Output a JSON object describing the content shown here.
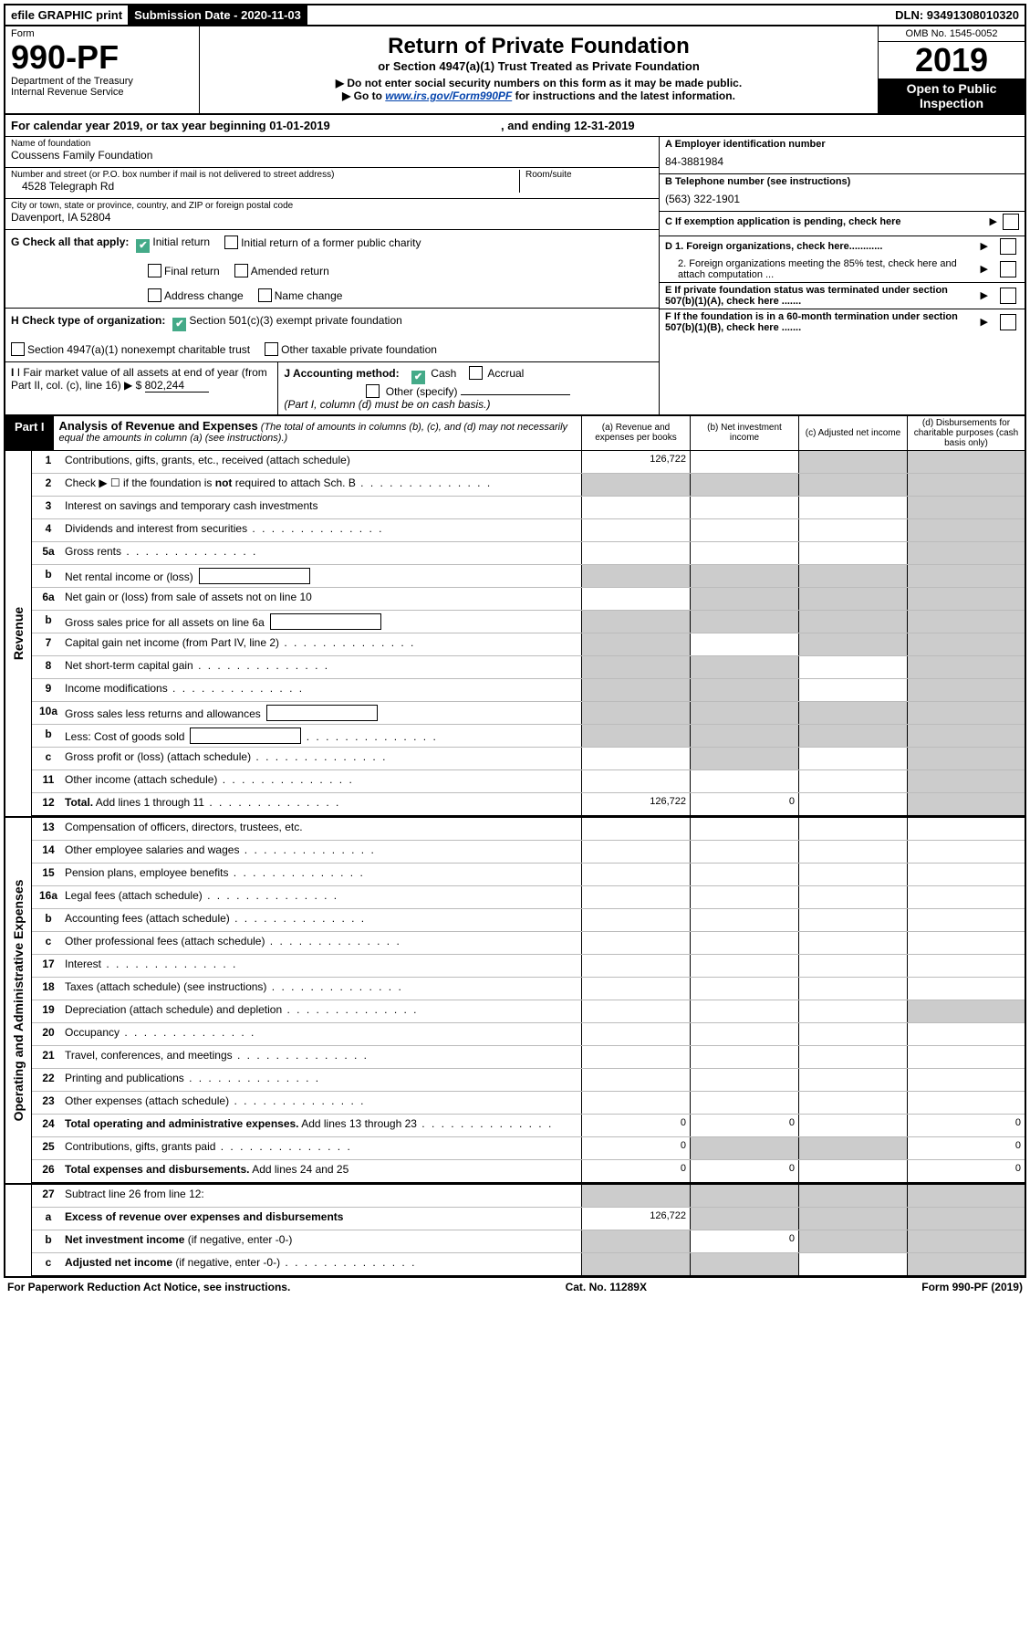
{
  "colors": {
    "black": "#000000",
    "white": "#ffffff",
    "grey_fill": "#cccccc",
    "link_blue": "#0645ad",
    "check_green": "#44aa88"
  },
  "topbar": {
    "efile": "efile GRAPHIC print",
    "submission_label": "Submission Date - 2020-11-03",
    "dln": "DLN: 93491308010320"
  },
  "header": {
    "form_label": "Form",
    "form_number": "990-PF",
    "dept1": "Department of the Treasury",
    "dept2": "Internal Revenue Service",
    "title": "Return of Private Foundation",
    "subtitle": "or Section 4947(a)(1) Trust Treated as Private Foundation",
    "bullet1": "▶ Do not enter social security numbers on this form as it may be made public.",
    "bullet2_pre": "▶ Go to ",
    "bullet2_link": "www.irs.gov/Form990PF",
    "bullet2_post": " for instructions and the latest information.",
    "omb": "OMB No. 1545-0052",
    "year": "2019",
    "open": "Open to Public Inspection"
  },
  "calyear": {
    "text_pre": "For calendar year 2019, or tax year beginning ",
    "begin": "01-01-2019",
    "mid": " , and ending ",
    "end": "12-31-2019"
  },
  "ident": {
    "name_label": "Name of foundation",
    "name": "Coussens Family Foundation",
    "addr_label": "Number and street (or P.O. box number if mail is not delivered to street address)",
    "addr": "4528 Telegraph Rd",
    "room_label": "Room/suite",
    "room": "",
    "city_label": "City or town, state or province, country, and ZIP or foreign postal code",
    "city": "Davenport, IA  52804",
    "a_label": "A Employer identification number",
    "a_val": "84-3881984",
    "b_label": "B Telephone number (see instructions)",
    "b_val": "(563) 322-1901",
    "c_label": "C If exemption application is pending, check here"
  },
  "g_section": {
    "label": "G Check all that apply:",
    "items": [
      {
        "label": "Initial return",
        "checked": true
      },
      {
        "label": "Initial return of a former public charity",
        "checked": false
      },
      {
        "label": "Final return",
        "checked": false
      },
      {
        "label": "Amended return",
        "checked": false
      },
      {
        "label": "Address change",
        "checked": false
      },
      {
        "label": "Name change",
        "checked": false
      }
    ]
  },
  "h_section": {
    "label": "H Check type of organization:",
    "items": [
      {
        "label": "Section 501(c)(3) exempt private foundation",
        "checked": true
      },
      {
        "label": "Section 4947(a)(1) nonexempt charitable trust",
        "checked": false
      },
      {
        "label": "Other taxable private foundation",
        "checked": false
      }
    ]
  },
  "d_section": {
    "d1": "D 1. Foreign organizations, check here............",
    "d2": "2. Foreign organizations meeting the 85% test, check here and attach computation ...",
    "e": "E  If private foundation status was terminated under section 507(b)(1)(A), check here .......",
    "f": "F  If the foundation is in a 60-month termination under section 507(b)(1)(B), check here ......."
  },
  "i_section": {
    "label": "I Fair market value of all assets at end of year (from Part II, col. (c), line 16)",
    "val": "802,244"
  },
  "j_section": {
    "label": "J Accounting method:",
    "cash": "Cash",
    "accrual": "Accrual",
    "other": "Other (specify)",
    "note": "(Part I, column (d) must be on cash basis.)"
  },
  "part1": {
    "label": "Part I",
    "title": "Analysis of Revenue and Expenses",
    "note": " (The total of amounts in columns (b), (c), and (d) may not necessarily equal the amounts in column (a) (see instructions).)",
    "col_a": "(a)  Revenue and expenses per books",
    "col_b": "(b)  Net investment income",
    "col_c": "(c)  Adjusted net income",
    "col_d": "(d)  Disbursements for charitable purposes (cash basis only)"
  },
  "side_labels": {
    "revenue": "Revenue",
    "expenses": "Operating and Administrative Expenses"
  },
  "lines": [
    {
      "n": "1",
      "desc": "Contributions, gifts, grants, etc., received (attach schedule)",
      "a": "126,722",
      "b": "",
      "c": "grey",
      "d": "grey"
    },
    {
      "n": "2",
      "desc": "Check ▶ ☐ if the foundation is <b>not</b> required to attach Sch. B",
      "a": "grey",
      "b": "grey",
      "c": "grey",
      "d": "grey",
      "dots": true
    },
    {
      "n": "3",
      "desc": "Interest on savings and temporary cash investments",
      "a": "",
      "b": "",
      "c": "",
      "d": "grey"
    },
    {
      "n": "4",
      "desc": "Dividends and interest from securities",
      "a": "",
      "b": "",
      "c": "",
      "d": "grey",
      "dots": true
    },
    {
      "n": "5a",
      "desc": "Gross rents",
      "a": "",
      "b": "",
      "c": "",
      "d": "grey",
      "dots": true
    },
    {
      "n": "b",
      "desc": "Net rental income or (loss)",
      "a": "grey",
      "b": "grey",
      "c": "grey",
      "d": "grey",
      "box": true
    },
    {
      "n": "6a",
      "desc": "Net gain or (loss) from sale of assets not on line 10",
      "a": "",
      "b": "grey",
      "c": "grey",
      "d": "grey"
    },
    {
      "n": "b",
      "desc": "Gross sales price for all assets on line 6a",
      "a": "grey",
      "b": "grey",
      "c": "grey",
      "d": "grey",
      "box": true
    },
    {
      "n": "7",
      "desc": "Capital gain net income (from Part IV, line 2)",
      "a": "grey",
      "b": "",
      "c": "grey",
      "d": "grey",
      "dots": true
    },
    {
      "n": "8",
      "desc": "Net short-term capital gain",
      "a": "grey",
      "b": "grey",
      "c": "",
      "d": "grey",
      "dots": true
    },
    {
      "n": "9",
      "desc": "Income modifications",
      "a": "grey",
      "b": "grey",
      "c": "",
      "d": "grey",
      "dots": true
    },
    {
      "n": "10a",
      "desc": "Gross sales less returns and allowances",
      "a": "grey",
      "b": "grey",
      "c": "grey",
      "d": "grey",
      "box": true
    },
    {
      "n": "b",
      "desc": "Less: Cost of goods sold",
      "a": "grey",
      "b": "grey",
      "c": "grey",
      "d": "grey",
      "box": true,
      "dots": true
    },
    {
      "n": "c",
      "desc": "Gross profit or (loss) (attach schedule)",
      "a": "",
      "b": "grey",
      "c": "",
      "d": "grey",
      "dots": true
    },
    {
      "n": "11",
      "desc": "Other income (attach schedule)",
      "a": "",
      "b": "",
      "c": "",
      "d": "grey",
      "dots": true
    },
    {
      "n": "12",
      "desc": "<b>Total.</b> Add lines 1 through 11",
      "a": "126,722",
      "b": "0",
      "c": "",
      "d": "grey",
      "dots": true,
      "bold": true
    }
  ],
  "exp_lines": [
    {
      "n": "13",
      "desc": "Compensation of officers, directors, trustees, etc.",
      "a": "",
      "b": "",
      "c": "",
      "d": ""
    },
    {
      "n": "14",
      "desc": "Other employee salaries and wages",
      "a": "",
      "b": "",
      "c": "",
      "d": "",
      "dots": true
    },
    {
      "n": "15",
      "desc": "Pension plans, employee benefits",
      "a": "",
      "b": "",
      "c": "",
      "d": "",
      "dots": true
    },
    {
      "n": "16a",
      "desc": "Legal fees (attach schedule)",
      "a": "",
      "b": "",
      "c": "",
      "d": "",
      "dots": true
    },
    {
      "n": "b",
      "desc": "Accounting fees (attach schedule)",
      "a": "",
      "b": "",
      "c": "",
      "d": "",
      "dots": true
    },
    {
      "n": "c",
      "desc": "Other professional fees (attach schedule)",
      "a": "",
      "b": "",
      "c": "",
      "d": "",
      "dots": true
    },
    {
      "n": "17",
      "desc": "Interest",
      "a": "",
      "b": "",
      "c": "",
      "d": "",
      "dots": true
    },
    {
      "n": "18",
      "desc": "Taxes (attach schedule) (see instructions)",
      "a": "",
      "b": "",
      "c": "",
      "d": "",
      "dots": true
    },
    {
      "n": "19",
      "desc": "Depreciation (attach schedule) and depletion",
      "a": "",
      "b": "",
      "c": "",
      "d": "grey",
      "dots": true
    },
    {
      "n": "20",
      "desc": "Occupancy",
      "a": "",
      "b": "",
      "c": "",
      "d": "",
      "dots": true
    },
    {
      "n": "21",
      "desc": "Travel, conferences, and meetings",
      "a": "",
      "b": "",
      "c": "",
      "d": "",
      "dots": true
    },
    {
      "n": "22",
      "desc": "Printing and publications",
      "a": "",
      "b": "",
      "c": "",
      "d": "",
      "dots": true
    },
    {
      "n": "23",
      "desc": "Other expenses (attach schedule)",
      "a": "",
      "b": "",
      "c": "",
      "d": "",
      "dots": true
    },
    {
      "n": "24",
      "desc": "<b>Total operating and administrative expenses.</b> Add lines 13 through 23",
      "a": "0",
      "b": "0",
      "c": "",
      "d": "0",
      "dots": true
    },
    {
      "n": "25",
      "desc": "Contributions, gifts, grants paid",
      "a": "0",
      "b": "grey",
      "c": "grey",
      "d": "0",
      "dots": true
    },
    {
      "n": "26",
      "desc": "<b>Total expenses and disbursements.</b> Add lines 24 and 25",
      "a": "0",
      "b": "0",
      "c": "",
      "d": "0"
    }
  ],
  "line27": {
    "n": "27",
    "desc": "Subtract line 26 from line 12:",
    "a": {
      "n": "a",
      "desc": "<b>Excess of revenue over expenses and disbursements</b>",
      "a": "126,722"
    },
    "b": {
      "n": "b",
      "desc": "<b>Net investment income</b> (if negative, enter -0-)",
      "b": "0"
    },
    "c": {
      "n": "c",
      "desc": "<b>Adjusted net income</b> (if negative, enter -0-)",
      "dots": true
    }
  },
  "footer": {
    "left": "For Paperwork Reduction Act Notice, see instructions.",
    "mid": "Cat. No. 11289X",
    "right": "Form 990-PF (2019)"
  }
}
